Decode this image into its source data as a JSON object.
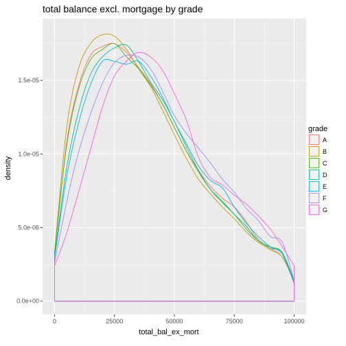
{
  "chart_data": {
    "type": "line",
    "title": "total balance excl. mortgage by grade",
    "xlabel": "total_bal_ex_mort",
    "ylabel": "density",
    "xlim": [
      -5000,
      105000
    ],
    "ylim": [
      -9e-07,
      1.92e-05
    ],
    "x_ticks": [
      0,
      25000,
      50000,
      75000,
      100000
    ],
    "x_tick_labels": [
      "0",
      "25000",
      "50000",
      "75000",
      "100000"
    ],
    "y_ticks": [
      0,
      5e-06,
      1e-05,
      1.5e-05
    ],
    "y_tick_labels": [
      "0.0e+00",
      "5.0e-06",
      "1.0e-05",
      "1.5e-05"
    ],
    "grid": true,
    "legend": {
      "title": "grade",
      "placement": "right"
    },
    "series": [
      {
        "name": "A",
        "color": "#F8766D",
        "x": [
          0,
          5000,
          10000,
          15000,
          20000,
          25000,
          30000,
          35000,
          40000,
          45000,
          50000,
          55000,
          60000,
          65000,
          70000,
          75000,
          80000,
          85000,
          90000,
          95000,
          100000
        ],
        "y": [
          3.1e-06,
          1.07e-05,
          1.46e-05,
          1.67e-05,
          1.73e-05,
          1.75e-05,
          1.69e-05,
          1.59e-05,
          1.48e-05,
          1.34e-05,
          1.18e-05,
          1.02e-05,
          8.9e-06,
          7.8e-06,
          7e-06,
          6.4e-06,
          5.4e-06,
          4.2e-06,
          3.6e-06,
          3e-06,
          1.3e-06
        ]
      },
      {
        "name": "B",
        "color": "#C49A00",
        "x": [
          0,
          5000,
          10000,
          15000,
          20000,
          25000,
          30000,
          35000,
          40000,
          45000,
          50000,
          55000,
          60000,
          65000,
          70000,
          75000,
          80000,
          85000,
          90000,
          95000,
          100000
        ],
        "y": [
          3.3e-06,
          1.17e-05,
          1.58e-05,
          1.75e-05,
          1.81e-05,
          1.8e-05,
          1.71e-05,
          1.58e-05,
          1.46e-05,
          1.3e-05,
          1.13e-05,
          9.7e-06,
          8.3e-06,
          7.3e-06,
          6.4e-06,
          5.6e-06,
          4.7e-06,
          4e-06,
          3.5e-06,
          3e-06,
          1.4e-06
        ]
      },
      {
        "name": "C",
        "color": "#53B400",
        "x": [
          0,
          5000,
          10000,
          15000,
          20000,
          25000,
          30000,
          35000,
          40000,
          45000,
          50000,
          55000,
          60000,
          65000,
          70000,
          75000,
          80000,
          85000,
          90000,
          95000,
          100000
        ],
        "y": [
          3.4e-06,
          1.05e-05,
          1.44e-05,
          1.64e-05,
          1.71e-05,
          1.75e-05,
          1.66e-05,
          1.58e-05,
          1.47e-05,
          1.34e-05,
          1.18e-05,
          1.02e-05,
          8.8e-06,
          7.6e-06,
          6.8e-06,
          5.9e-06,
          5.1e-06,
          4.1e-06,
          3.7e-06,
          3.3e-06,
          1.3e-06
        ]
      },
      {
        "name": "D",
        "color": "#00C094",
        "x": [
          0,
          5000,
          10000,
          15000,
          20000,
          25000,
          30000,
          35000,
          40000,
          45000,
          50000,
          55000,
          60000,
          65000,
          70000,
          75000,
          80000,
          85000,
          90000,
          95000,
          100000
        ],
        "y": [
          3e-06,
          9e-06,
          1.29e-05,
          1.54e-05,
          1.66e-05,
          1.72e-05,
          1.74e-05,
          1.63e-05,
          1.49e-05,
          1.37e-05,
          1.22e-05,
          1.05e-05,
          8.9e-06,
          7.6e-06,
          6.7e-06,
          5.9e-06,
          4.9e-06,
          4.1e-06,
          3.6e-06,
          3.3e-06,
          1.4e-06
        ]
      },
      {
        "name": "E",
        "color": "#00B6EB",
        "x": [
          0,
          5000,
          10000,
          15000,
          20000,
          25000,
          30000,
          35000,
          40000,
          45000,
          50000,
          55000,
          60000,
          65000,
          70000,
          75000,
          80000,
          85000,
          90000,
          95000,
          100000
        ],
        "y": [
          2.9e-06,
          8.4e-06,
          1.21e-05,
          1.47e-05,
          1.63e-05,
          1.63e-05,
          1.61e-05,
          1.63e-05,
          1.53e-05,
          1.39e-05,
          1.22e-05,
          1.07e-05,
          9.2e-06,
          8.2e-06,
          7.7e-06,
          6.4e-06,
          5.3e-06,
          4.4e-06,
          3.7e-06,
          3.2e-06,
          1.2e-06
        ]
      },
      {
        "name": "F",
        "color": "#A58AFF",
        "x": [
          0,
          5000,
          10000,
          15000,
          20000,
          25000,
          30000,
          35000,
          40000,
          45000,
          50000,
          55000,
          60000,
          65000,
          70000,
          75000,
          80000,
          85000,
          90000,
          95000,
          100000
        ],
        "y": [
          2.6e-06,
          6.7e-06,
          1.01e-05,
          1.27e-05,
          1.48e-05,
          1.62e-05,
          1.67e-05,
          1.66e-05,
          1.58e-05,
          1.43e-05,
          1.26e-05,
          1.14e-05,
          1.04e-05,
          9.4e-06,
          8.3e-06,
          7.4e-06,
          6.3e-06,
          5.5e-06,
          4.4e-06,
          4e-06,
          1.4e-06
        ]
      },
      {
        "name": "G",
        "color": "#FB61D7",
        "x": [
          0,
          5000,
          10000,
          15000,
          20000,
          25000,
          30000,
          35000,
          40000,
          45000,
          50000,
          55000,
          60000,
          65000,
          70000,
          75000,
          80000,
          85000,
          90000,
          95000,
          100000
        ],
        "y": [
          2.4e-06,
          4.6e-06,
          7.4e-06,
          1.03e-05,
          1.32e-05,
          1.53e-05,
          1.63e-05,
          1.69e-05,
          1.66e-05,
          1.57e-05,
          1.41e-05,
          1.23e-05,
          9.8e-06,
          8.4e-06,
          7.9e-06,
          7.2e-06,
          6.6e-06,
          5.8e-06,
          4.9e-06,
          3.7e-06,
          2.4e-06
        ]
      }
    ]
  }
}
